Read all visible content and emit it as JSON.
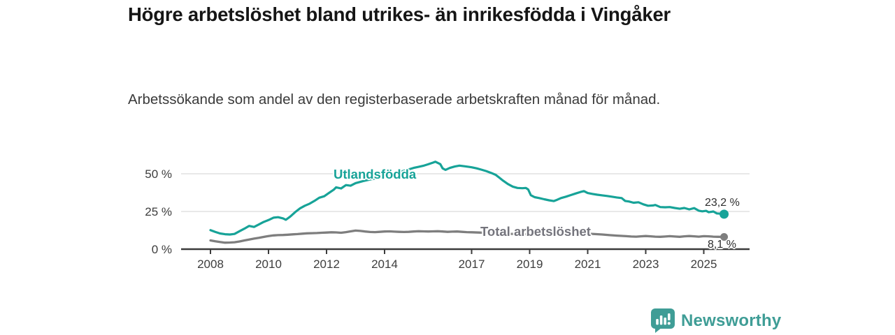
{
  "header": {
    "title": "Högre arbetslöshet bland utrikes- än inrikesfödda i Vingåker",
    "subtitle": "Arbetssökande som andel av den registerbaserade arbetskraften månad för månad."
  },
  "colors": {
    "accent_teal": "#17A398",
    "series_gray": "#7E7E7E",
    "axis_dark": "#3B3B3B",
    "grid_gray": "#D9D9D9",
    "brand_teal": "#3F9D96"
  },
  "footer": {
    "brand": "Newsworthy"
  },
  "chart_data": {
    "type": "line",
    "title": "Högre arbetslöshet bland utrikes- än inrikesfödda i Vingåker",
    "subtitle": "Arbetssökande som andel av den registerbaserade arbetskraften månad för månad.",
    "unit": "%",
    "grid": "horizontal-only",
    "legend_position": "inline-on-lines",
    "x_axis": {
      "ticks": [
        {
          "value": 2008,
          "label": "2008"
        },
        {
          "value": 2010,
          "label": "2010"
        },
        {
          "value": 2012,
          "label": "2012"
        },
        {
          "value": 2014,
          "label": "2014"
        },
        {
          "value": 2017,
          "label": "2017"
        },
        {
          "value": 2019,
          "label": "2019"
        },
        {
          "value": 2021,
          "label": "2021"
        },
        {
          "value": 2023,
          "label": "2023"
        },
        {
          "value": 2025,
          "label": "2025"
        }
      ],
      "range": [
        2008,
        2025.7
      ]
    },
    "y_axis": {
      "ticks": [
        {
          "value": 0,
          "label": "0 %"
        },
        {
          "value": 25,
          "label": "25 %"
        },
        {
          "value": 50,
          "label": "50 %"
        }
      ],
      "range": [
        0,
        60
      ]
    },
    "series": [
      {
        "name": "Utlandsfödda",
        "color": "#17A398",
        "line_width": 3.2,
        "dot_radius": 6.5,
        "end_label": "23,2 %",
        "end_value": 23.2,
        "points": [
          [
            2008.0,
            12.6
          ],
          [
            2008.17,
            11.4
          ],
          [
            2008.33,
            10.4
          ],
          [
            2008.5,
            9.9
          ],
          [
            2008.67,
            9.7
          ],
          [
            2008.83,
            10.1
          ],
          [
            2009.0,
            11.9
          ],
          [
            2009.17,
            13.6
          ],
          [
            2009.33,
            15.4
          ],
          [
            2009.5,
            14.7
          ],
          [
            2009.67,
            16.4
          ],
          [
            2009.83,
            18.0
          ],
          [
            2010.0,
            19.3
          ],
          [
            2010.17,
            20.9
          ],
          [
            2010.33,
            21.2
          ],
          [
            2010.5,
            20.4
          ],
          [
            2010.6,
            19.5
          ],
          [
            2010.75,
            21.6
          ],
          [
            2010.92,
            24.6
          ],
          [
            2011.08,
            27.0
          ],
          [
            2011.25,
            28.8
          ],
          [
            2011.42,
            30.2
          ],
          [
            2011.58,
            32.0
          ],
          [
            2011.75,
            34.1
          ],
          [
            2011.92,
            35.1
          ],
          [
            2012.08,
            37.2
          ],
          [
            2012.25,
            39.5
          ],
          [
            2012.33,
            41.0
          ],
          [
            2012.5,
            40.3
          ],
          [
            2012.67,
            42.5
          ],
          [
            2012.83,
            42.1
          ],
          [
            2013.0,
            43.8
          ],
          [
            2013.25,
            45.1
          ],
          [
            2013.5,
            46.2
          ],
          [
            2013.75,
            47.2
          ],
          [
            2014.0,
            48.4
          ],
          [
            2014.25,
            49.6
          ],
          [
            2014.5,
            51.1
          ],
          [
            2014.75,
            52.4
          ],
          [
            2015.0,
            53.9
          ],
          [
            2015.17,
            54.6
          ],
          [
            2015.33,
            55.3
          ],
          [
            2015.5,
            56.3
          ],
          [
            2015.67,
            57.4
          ],
          [
            2015.75,
            58.0
          ],
          [
            2015.92,
            56.4
          ],
          [
            2016.0,
            53.6
          ],
          [
            2016.1,
            52.6
          ],
          [
            2016.25,
            53.9
          ],
          [
            2016.42,
            54.8
          ],
          [
            2016.58,
            55.4
          ],
          [
            2016.75,
            55.0
          ],
          [
            2016.9,
            54.6
          ],
          [
            2017.0,
            54.3
          ],
          [
            2017.17,
            53.6
          ],
          [
            2017.33,
            52.8
          ],
          [
            2017.5,
            51.8
          ],
          [
            2017.67,
            50.6
          ],
          [
            2017.83,
            49.3
          ],
          [
            2017.95,
            47.5
          ],
          [
            2018.08,
            45.5
          ],
          [
            2018.25,
            43.2
          ],
          [
            2018.42,
            41.5
          ],
          [
            2018.58,
            40.6
          ],
          [
            2018.75,
            40.4
          ],
          [
            2018.87,
            40.6
          ],
          [
            2018.95,
            39.6
          ],
          [
            2019.04,
            35.8
          ],
          [
            2019.17,
            34.5
          ],
          [
            2019.33,
            33.9
          ],
          [
            2019.5,
            33.1
          ],
          [
            2019.67,
            32.4
          ],
          [
            2019.83,
            31.9
          ],
          [
            2019.95,
            32.8
          ],
          [
            2020.08,
            33.9
          ],
          [
            2020.25,
            34.8
          ],
          [
            2020.42,
            35.9
          ],
          [
            2020.58,
            36.9
          ],
          [
            2020.75,
            37.9
          ],
          [
            2020.87,
            38.5
          ],
          [
            2021.0,
            37.2
          ],
          [
            2021.17,
            36.6
          ],
          [
            2021.33,
            36.1
          ],
          [
            2021.5,
            35.7
          ],
          [
            2021.67,
            35.3
          ],
          [
            2021.83,
            34.8
          ],
          [
            2022.0,
            34.3
          ],
          [
            2022.17,
            33.9
          ],
          [
            2022.29,
            32.0
          ],
          [
            2022.42,
            31.6
          ],
          [
            2022.58,
            30.8
          ],
          [
            2022.75,
            31.1
          ],
          [
            2022.92,
            29.7
          ],
          [
            2023.08,
            28.8
          ],
          [
            2023.25,
            29.0
          ],
          [
            2023.33,
            29.3
          ],
          [
            2023.5,
            27.9
          ],
          [
            2023.67,
            27.8
          ],
          [
            2023.83,
            27.9
          ],
          [
            2024.0,
            27.3
          ],
          [
            2024.17,
            26.8
          ],
          [
            2024.33,
            27.3
          ],
          [
            2024.5,
            26.4
          ],
          [
            2024.67,
            27.2
          ],
          [
            2024.83,
            25.5
          ],
          [
            2024.95,
            25.1
          ],
          [
            2025.08,
            25.4
          ],
          [
            2025.17,
            24.5
          ],
          [
            2025.33,
            25.0
          ],
          [
            2025.45,
            23.7
          ],
          [
            2025.58,
            23.5
          ],
          [
            2025.7,
            23.2
          ]
        ]
      },
      {
        "name": "Total arbetslöshet",
        "color": "#7E7E7E",
        "line_width": 3.3,
        "dot_radius": 5.5,
        "end_label": "8,1 %",
        "end_value": 8.1,
        "points": [
          [
            2008.0,
            5.8
          ],
          [
            2008.17,
            5.2
          ],
          [
            2008.33,
            4.7
          ],
          [
            2008.5,
            4.3
          ],
          [
            2008.67,
            4.4
          ],
          [
            2008.83,
            4.6
          ],
          [
            2009.0,
            5.1
          ],
          [
            2009.17,
            5.8
          ],
          [
            2009.33,
            6.4
          ],
          [
            2009.5,
            7.0
          ],
          [
            2009.67,
            7.5
          ],
          [
            2009.83,
            8.1
          ],
          [
            2010.0,
            8.7
          ],
          [
            2010.17,
            9.1
          ],
          [
            2010.33,
            9.3
          ],
          [
            2010.5,
            9.4
          ],
          [
            2010.67,
            9.6
          ],
          [
            2010.83,
            9.8
          ],
          [
            2011.0,
            10.0
          ],
          [
            2011.17,
            10.3
          ],
          [
            2011.33,
            10.5
          ],
          [
            2011.5,
            10.6
          ],
          [
            2011.67,
            10.7
          ],
          [
            2011.83,
            10.9
          ],
          [
            2012.0,
            11.0
          ],
          [
            2012.17,
            11.2
          ],
          [
            2012.33,
            11.1
          ],
          [
            2012.5,
            10.9
          ],
          [
            2012.67,
            11.3
          ],
          [
            2012.83,
            11.8
          ],
          [
            2013.0,
            12.3
          ],
          [
            2013.17,
            12.1
          ],
          [
            2013.33,
            11.7
          ],
          [
            2013.5,
            11.4
          ],
          [
            2013.67,
            11.3
          ],
          [
            2013.83,
            11.5
          ],
          [
            2014.0,
            11.7
          ],
          [
            2014.17,
            11.8
          ],
          [
            2014.33,
            11.6
          ],
          [
            2014.5,
            11.5
          ],
          [
            2014.67,
            11.4
          ],
          [
            2014.83,
            11.5
          ],
          [
            2015.0,
            11.7
          ],
          [
            2015.17,
            11.9
          ],
          [
            2015.33,
            11.8
          ],
          [
            2015.5,
            11.7
          ],
          [
            2015.67,
            11.8
          ],
          [
            2015.83,
            11.9
          ],
          [
            2016.0,
            11.7
          ],
          [
            2016.17,
            11.5
          ],
          [
            2016.33,
            11.6
          ],
          [
            2016.5,
            11.7
          ],
          [
            2016.67,
            11.5
          ],
          [
            2016.83,
            11.3
          ],
          [
            2017.0,
            11.2
          ],
          [
            2017.25,
            11.0
          ],
          [
            2017.5,
            10.8
          ],
          [
            2017.75,
            10.6
          ],
          [
            2018.0,
            10.4
          ],
          [
            2018.25,
            10.2
          ],
          [
            2018.5,
            10.1
          ],
          [
            2018.75,
            10.0
          ],
          [
            2019.0,
            9.9
          ],
          [
            2019.25,
            9.8
          ],
          [
            2019.5,
            9.9
          ],
          [
            2019.75,
            10.0
          ],
          [
            2020.0,
            10.3
          ],
          [
            2020.25,
            10.6
          ],
          [
            2020.5,
            10.7
          ],
          [
            2020.75,
            10.5
          ],
          [
            2021.0,
            10.3
          ],
          [
            2021.25,
            10.0
          ],
          [
            2021.5,
            9.7
          ],
          [
            2021.75,
            9.3
          ],
          [
            2022.0,
            9.0
          ],
          [
            2022.17,
            8.8
          ],
          [
            2022.33,
            8.6
          ],
          [
            2022.5,
            8.4
          ],
          [
            2022.67,
            8.3
          ],
          [
            2022.83,
            8.5
          ],
          [
            2023.0,
            8.7
          ],
          [
            2023.17,
            8.5
          ],
          [
            2023.33,
            8.3
          ],
          [
            2023.5,
            8.2
          ],
          [
            2023.67,
            8.4
          ],
          [
            2023.83,
            8.6
          ],
          [
            2024.0,
            8.4
          ],
          [
            2024.17,
            8.2
          ],
          [
            2024.33,
            8.5
          ],
          [
            2024.5,
            8.7
          ],
          [
            2024.67,
            8.5
          ],
          [
            2024.83,
            8.3
          ],
          [
            2025.0,
            8.6
          ],
          [
            2025.17,
            8.5
          ],
          [
            2025.33,
            8.3
          ],
          [
            2025.5,
            8.2
          ],
          [
            2025.7,
            8.1
          ]
        ]
      }
    ]
  }
}
